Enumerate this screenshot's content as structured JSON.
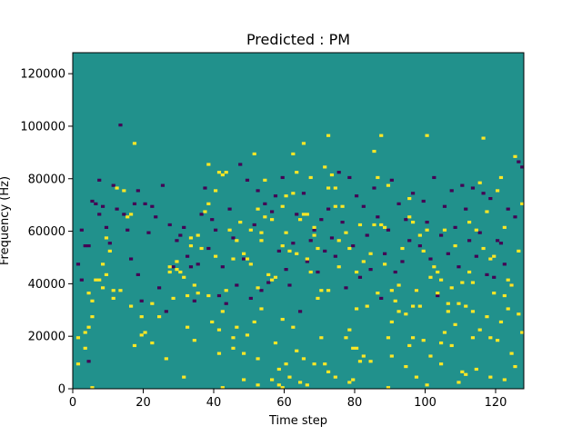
{
  "chart_data": {
    "type": "heatmap",
    "title": "Predicted : PM",
    "xlabel": "Time step",
    "ylabel": "Frequency (Hz)",
    "xlim": [
      0,
      128
    ],
    "ylim": [
      0,
      128000
    ],
    "xticks": [
      0,
      20,
      40,
      60,
      80,
      100,
      120
    ],
    "yticks": [
      0,
      20000,
      40000,
      60000,
      80000,
      100000,
      120000
    ],
    "xtick_labels": [
      "0",
      "20",
      "40",
      "60",
      "80",
      "100",
      "120"
    ],
    "ytick_labels": [
      "0",
      "20000",
      "40000",
      "60000",
      "80000",
      "100000",
      "120000"
    ],
    "rows": 128,
    "cols": 128,
    "cell_height_hz": 1000,
    "colormap": "viridis",
    "background_value": 0,
    "colors": {
      "background": "#21918c",
      "high": "#fde725",
      "low": "#440154"
    },
    "cells_high": [
      [
        1,
        9
      ],
      [
        1,
        19
      ],
      [
        3,
        15
      ],
      [
        3,
        21
      ],
      [
        4,
        23
      ],
      [
        4,
        36
      ],
      [
        5,
        0
      ],
      [
        5,
        27
      ],
      [
        5,
        33
      ],
      [
        6,
        41
      ],
      [
        7,
        41
      ],
      [
        8,
        38
      ],
      [
        8,
        47
      ],
      [
        9,
        43
      ],
      [
        9,
        57
      ],
      [
        10,
        52
      ],
      [
        11,
        34
      ],
      [
        11,
        37
      ],
      [
        12,
        76
      ],
      [
        13,
        37
      ],
      [
        14,
        75
      ],
      [
        15,
        65
      ],
      [
        16,
        31
      ],
      [
        16,
        66
      ],
      [
        17,
        16
      ],
      [
        17,
        93
      ],
      [
        19,
        20
      ],
      [
        19,
        27
      ],
      [
        20,
        21
      ],
      [
        22,
        17
      ],
      [
        22,
        32
      ],
      [
        24,
        27
      ],
      [
        26,
        11
      ],
      [
        27,
        44
      ],
      [
        27,
        46
      ],
      [
        28,
        34
      ],
      [
        29,
        45
      ],
      [
        29,
        48
      ],
      [
        30,
        44
      ],
      [
        31,
        4
      ],
      [
        31,
        42
      ],
      [
        32,
        23
      ],
      [
        32,
        35
      ],
      [
        33,
        54
      ],
      [
        33,
        57
      ],
      [
        34,
        18
      ],
      [
        34,
        39
      ],
      [
        35,
        36
      ],
      [
        35,
        58
      ],
      [
        36,
        53
      ],
      [
        37,
        67
      ],
      [
        38,
        35
      ],
      [
        38,
        70
      ],
      [
        38,
        85
      ],
      [
        39,
        25
      ],
      [
        40,
        50
      ],
      [
        40,
        75
      ],
      [
        41,
        13
      ],
      [
        41,
        22
      ],
      [
        41,
        82
      ],
      [
        42,
        0
      ],
      [
        42,
        29
      ],
      [
        42,
        81
      ],
      [
        43,
        37
      ],
      [
        43,
        82
      ],
      [
        44,
        60
      ],
      [
        45,
        15
      ],
      [
        45,
        19
      ],
      [
        45,
        49
      ],
      [
        46,
        23
      ],
      [
        46,
        56
      ],
      [
        47,
        63
      ],
      [
        48,
        3
      ],
      [
        48,
        13
      ],
      [
        48,
        51
      ],
      [
        49,
        20
      ],
      [
        49,
        49
      ],
      [
        50,
        47
      ],
      [
        50,
        60
      ],
      [
        51,
        25
      ],
      [
        51,
        89
      ],
      [
        52,
        1
      ],
      [
        52,
        11
      ],
      [
        52,
        38
      ],
      [
        52,
        68
      ],
      [
        53,
        30
      ],
      [
        53,
        56
      ],
      [
        53,
        59
      ],
      [
        54,
        65
      ],
      [
        54,
        79
      ],
      [
        55,
        43
      ],
      [
        56,
        3
      ],
      [
        56,
        41
      ],
      [
        56,
        64
      ],
      [
        57,
        17
      ],
      [
        57,
        42
      ],
      [
        58,
        1
      ],
      [
        58,
        7
      ],
      [
        59,
        0
      ],
      [
        59,
        26
      ],
      [
        59,
        54
      ],
      [
        59,
        69
      ],
      [
        60,
        9
      ],
      [
        60,
        59
      ],
      [
        60,
        73
      ],
      [
        61,
        4
      ],
      [
        61,
        52
      ],
      [
        62,
        23
      ],
      [
        62,
        74
      ],
      [
        62,
        89
      ],
      [
        63,
        14
      ],
      [
        63,
        51
      ],
      [
        63,
        82
      ],
      [
        64,
        2
      ],
      [
        64,
        64
      ],
      [
        65,
        11
      ],
      [
        65,
        66
      ],
      [
        65,
        93
      ],
      [
        66,
        1
      ],
      [
        66,
        49
      ],
      [
        66,
        66
      ],
      [
        67,
        44
      ],
      [
        67,
        80
      ],
      [
        68,
        9
      ],
      [
        68,
        58
      ],
      [
        68,
        61
      ],
      [
        69,
        34
      ],
      [
        69,
        53
      ],
      [
        70,
        19
      ],
      [
        70,
        37
      ],
      [
        71,
        9
      ],
      [
        71,
        84
      ],
      [
        72,
        6
      ],
      [
        72,
        37
      ],
      [
        72,
        76
      ],
      [
        72,
        96
      ],
      [
        73,
        81
      ],
      [
        74,
        4
      ],
      [
        74,
        69
      ],
      [
        74,
        76
      ],
      [
        75,
        46
      ],
      [
        75,
        56
      ],
      [
        76,
        69
      ],
      [
        77,
        19
      ],
      [
        77,
        59
      ],
      [
        78,
        2
      ],
      [
        78,
        22
      ],
      [
        78,
        53
      ],
      [
        79,
        3
      ],
      [
        79,
        15
      ],
      [
        80,
        15
      ],
      [
        80,
        30
      ],
      [
        80,
        44
      ],
      [
        81,
        10
      ],
      [
        81,
        62
      ],
      [
        82,
        12
      ],
      [
        82,
        48
      ],
      [
        83,
        31
      ],
      [
        84,
        10
      ],
      [
        84,
        51
      ],
      [
        85,
        62
      ],
      [
        85,
        90
      ],
      [
        86,
        36
      ],
      [
        86,
        80
      ],
      [
        87,
        62
      ],
      [
        87,
        96
      ],
      [
        88,
        47
      ],
      [
        88,
        61
      ],
      [
        89,
        0
      ],
      [
        89,
        19
      ],
      [
        89,
        77
      ],
      [
        90,
        12
      ],
      [
        90,
        25
      ],
      [
        90,
        37
      ],
      [
        91,
        33
      ],
      [
        92,
        29
      ],
      [
        92,
        39
      ],
      [
        93,
        53
      ],
      [
        94,
        8
      ],
      [
        94,
        28
      ],
      [
        95,
        16
      ],
      [
        95,
        65
      ],
      [
        95,
        72
      ],
      [
        96,
        19
      ],
      [
        96,
        31
      ],
      [
        96,
        63
      ],
      [
        97,
        4
      ],
      [
        97,
        37
      ],
      [
        98,
        31
      ],
      [
        98,
        58
      ],
      [
        99,
        18
      ],
      [
        99,
        52
      ],
      [
        100,
        1
      ],
      [
        100,
        60
      ],
      [
        100,
        96
      ],
      [
        101,
        12
      ],
      [
        101,
        42
      ],
      [
        102,
        46
      ],
      [
        103,
        36
      ],
      [
        103,
        44
      ],
      [
        104,
        9
      ],
      [
        104,
        17
      ],
      [
        104,
        41
      ],
      [
        105,
        21
      ],
      [
        105,
        60
      ],
      [
        106,
        29
      ],
      [
        106,
        32
      ],
      [
        107,
        16
      ],
      [
        107,
        38
      ],
      [
        108,
        24
      ],
      [
        108,
        54
      ],
      [
        109,
        2
      ],
      [
        109,
        32
      ],
      [
        110,
        6
      ],
      [
        110,
        40
      ],
      [
        111,
        5
      ],
      [
        111,
        31
      ],
      [
        112,
        44
      ],
      [
        112,
        63
      ],
      [
        113,
        19
      ],
      [
        113,
        29
      ],
      [
        113,
        40
      ],
      [
        114,
        7
      ],
      [
        114,
        60
      ],
      [
        115,
        22
      ],
      [
        115,
        78
      ],
      [
        116,
        53
      ],
      [
        116,
        95
      ],
      [
        117,
        27
      ],
      [
        117,
        67
      ],
      [
        118,
        4
      ],
      [
        118,
        19
      ],
      [
        118,
        49
      ],
      [
        119,
        36
      ],
      [
        119,
        50
      ],
      [
        120,
        18
      ],
      [
        120,
        75
      ],
      [
        121,
        25
      ],
      [
        121,
        80
      ],
      [
        122,
        3
      ],
      [
        122,
        35
      ],
      [
        122,
        61
      ],
      [
        123,
        30
      ],
      [
        123,
        41
      ],
      [
        124,
        13
      ],
      [
        124,
        39
      ],
      [
        125,
        8
      ],
      [
        125,
        88
      ],
      [
        126,
        28
      ],
      [
        126,
        52
      ],
      [
        127,
        21
      ],
      [
        127,
        70
      ]
    ],
    "cells_low": [
      [
        1,
        47
      ],
      [
        2,
        41
      ],
      [
        2,
        60
      ],
      [
        3,
        54
      ],
      [
        4,
        10
      ],
      [
        4,
        54
      ],
      [
        5,
        71
      ],
      [
        6,
        70
      ],
      [
        7,
        66
      ],
      [
        7,
        79
      ],
      [
        8,
        69
      ],
      [
        9,
        61
      ],
      [
        10,
        55
      ],
      [
        11,
        77
      ],
      [
        12,
        68
      ],
      [
        13,
        100
      ],
      [
        14,
        66
      ],
      [
        15,
        60
      ],
      [
        16,
        49
      ],
      [
        17,
        70
      ],
      [
        18,
        43
      ],
      [
        18,
        75
      ],
      [
        19,
        33
      ],
      [
        20,
        70
      ],
      [
        21,
        59
      ],
      [
        22,
        69
      ],
      [
        23,
        65
      ],
      [
        24,
        38
      ],
      [
        25,
        77
      ],
      [
        26,
        29
      ],
      [
        27,
        62
      ],
      [
        28,
        46
      ],
      [
        29,
        56
      ],
      [
        30,
        58
      ],
      [
        31,
        61
      ],
      [
        32,
        50
      ],
      [
        33,
        46
      ],
      [
        34,
        33
      ],
      [
        35,
        47
      ],
      [
        36,
        66
      ],
      [
        37,
        76
      ],
      [
        38,
        53
      ],
      [
        39,
        64
      ],
      [
        40,
        60
      ],
      [
        41,
        35
      ],
      [
        42,
        46
      ],
      [
        43,
        32
      ],
      [
        44,
        68
      ],
      [
        45,
        57
      ],
      [
        46,
        39
      ],
      [
        47,
        85
      ],
      [
        48,
        49
      ],
      [
        49,
        79
      ],
      [
        50,
        34
      ],
      [
        51,
        62
      ],
      [
        52,
        75
      ],
      [
        53,
        37
      ],
      [
        54,
        70
      ],
      [
        55,
        40
      ],
      [
        56,
        67
      ],
      [
        57,
        73
      ],
      [
        58,
        52
      ],
      [
        59,
        80
      ],
      [
        60,
        45
      ],
      [
        61,
        39
      ],
      [
        62,
        55
      ],
      [
        63,
        66
      ],
      [
        64,
        29
      ],
      [
        65,
        74
      ],
      [
        66,
        48
      ],
      [
        67,
        56
      ],
      [
        68,
        60
      ],
      [
        69,
        44
      ],
      [
        70,
        64
      ],
      [
        71,
        52
      ],
      [
        72,
        68
      ],
      [
        73,
        57
      ],
      [
        74,
        50
      ],
      [
        75,
        82
      ],
      [
        76,
        63
      ],
      [
        77,
        38
      ],
      [
        78,
        80
      ],
      [
        79,
        54
      ],
      [
        80,
        73
      ],
      [
        81,
        42
      ],
      [
        82,
        69
      ],
      [
        83,
        58
      ],
      [
        84,
        45
      ],
      [
        85,
        76
      ],
      [
        86,
        65
      ],
      [
        87,
        34
      ],
      [
        88,
        51
      ],
      [
        89,
        60
      ],
      [
        90,
        79
      ],
      [
        91,
        44
      ],
      [
        92,
        70
      ],
      [
        93,
        48
      ],
      [
        94,
        64
      ],
      [
        95,
        56
      ],
      [
        96,
        74
      ],
      [
        97,
        37
      ],
      [
        98,
        54
      ],
      [
        99,
        71
      ],
      [
        100,
        63
      ],
      [
        101,
        49
      ],
      [
        102,
        80
      ],
      [
        103,
        35
      ],
      [
        104,
        58
      ],
      [
        105,
        69
      ],
      [
        106,
        51
      ],
      [
        107,
        75
      ],
      [
        108,
        61
      ],
      [
        109,
        46
      ],
      [
        110,
        77
      ],
      [
        111,
        68
      ],
      [
        112,
        56
      ],
      [
        113,
        76
      ],
      [
        114,
        50
      ],
      [
        115,
        59
      ],
      [
        116,
        74
      ],
      [
        117,
        43
      ],
      [
        118,
        72
      ],
      [
        119,
        42
      ],
      [
        120,
        56
      ],
      [
        121,
        55
      ],
      [
        122,
        47
      ],
      [
        123,
        68
      ],
      [
        124,
        39
      ],
      [
        125,
        65
      ],
      [
        126,
        86
      ],
      [
        127,
        84
      ]
    ]
  }
}
